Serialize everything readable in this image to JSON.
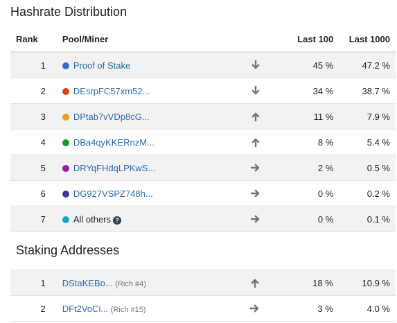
{
  "hashrate": {
    "title": "Hashrate Distribution",
    "headers": {
      "rank": "Rank",
      "pool": "Pool/Miner",
      "last100": "Last 100",
      "last1000": "Last 1000"
    },
    "rows": [
      {
        "rank": "1",
        "name": "Proof of Stake",
        "color": "#3b67c9",
        "trend": "down-icon",
        "last100": "45 %",
        "last1000": "47.2 %"
      },
      {
        "rank": "2",
        "name": "DEsrpFC57xm52...",
        "color": "#d9421e",
        "trend": "down-icon",
        "last100": "34 %",
        "last1000": "38.7 %"
      },
      {
        "rank": "3",
        "name": "DPtab7vVDp8cG...",
        "color": "#f0a020",
        "trend": "up-icon",
        "last100": "11 %",
        "last1000": "7.9 %"
      },
      {
        "rank": "4",
        "name": "DBa4qyKKERnzM...",
        "color": "#139b26",
        "trend": "up-icon",
        "last100": "8 %",
        "last1000": "5.4 %"
      },
      {
        "rank": "5",
        "name": "DRYqFHdqLPKwS...",
        "color": "#9a1aa4",
        "trend": "right-icon",
        "last100": "2 %",
        "last1000": "0.5 %"
      },
      {
        "rank": "6",
        "name": "DG927VSPZ748h...",
        "color": "#3b3aa0",
        "trend": "right-icon",
        "last100": "0 %",
        "last1000": "0.2 %"
      },
      {
        "rank": "7",
        "name": "All others",
        "color": "#18a3c4",
        "trend": "right-icon",
        "last100": "0 %",
        "last1000": "0.1 %"
      }
    ]
  },
  "staking": {
    "title": "Staking Addresses",
    "rows": [
      {
        "rank": "1",
        "name": "DStaKEBo...",
        "note": "(Rich #4)",
        "trend": "up-icon",
        "last100": "18 %",
        "last1000": "10.9 %"
      },
      {
        "rank": "2",
        "name": "DFt2VoCi...",
        "note": "(Rich #15)",
        "trend": "right-icon",
        "last100": "3 %",
        "last1000": "4.0 %"
      }
    ]
  }
}
